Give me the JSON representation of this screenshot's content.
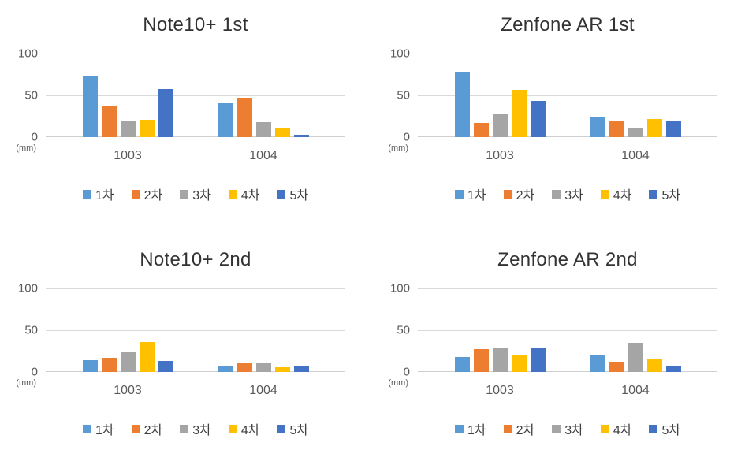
{
  "figure": {
    "background": "#ffffff",
    "layout": "2x2-grid-of-bar-charts"
  },
  "palette": {
    "series1": "#5B9BD5",
    "series2": "#ED7D31",
    "series3": "#A5A5A5",
    "series4": "#FFC000",
    "series5": "#4472C4",
    "gridline": "#d9d9d9",
    "tick_text": "#595959",
    "title_text": "#333333"
  },
  "chart_data": [
    {
      "type": "bar",
      "title": "Note10+ 1st",
      "unit_label": "(mm)",
      "categories": [
        "1003",
        "1004"
      ],
      "yticks": [
        "100",
        "50",
        "0"
      ],
      "ylim": [
        0,
        100
      ],
      "grid": true,
      "legend_position": "bottom",
      "series": [
        {
          "name": "1차",
          "color": "#5B9BD5",
          "values": [
            73,
            41
          ]
        },
        {
          "name": "2차",
          "color": "#ED7D31",
          "values": [
            37,
            47
          ]
        },
        {
          "name": "3차",
          "color": "#A5A5A5",
          "values": [
            20,
            18
          ]
        },
        {
          "name": "4차",
          "color": "#FFC000",
          "values": [
            21,
            11
          ]
        },
        {
          "name": "5차",
          "color": "#4472C4",
          "values": [
            58,
            3
          ]
        }
      ]
    },
    {
      "type": "bar",
      "title": "Zenfone AR 1st",
      "unit_label": "(mm)",
      "categories": [
        "1003",
        "1004"
      ],
      "yticks": [
        "100",
        "50",
        "0"
      ],
      "ylim": [
        0,
        100
      ],
      "grid": true,
      "legend_position": "bottom",
      "series": [
        {
          "name": "1차",
          "color": "#5B9BD5",
          "values": [
            77,
            25
          ]
        },
        {
          "name": "2차",
          "color": "#ED7D31",
          "values": [
            17,
            19
          ]
        },
        {
          "name": "3차",
          "color": "#A5A5A5",
          "values": [
            27,
            11
          ]
        },
        {
          "name": "4차",
          "color": "#FFC000",
          "values": [
            57,
            22
          ]
        },
        {
          "name": "5차",
          "color": "#4472C4",
          "values": [
            43,
            19
          ]
        }
      ]
    },
    {
      "type": "bar",
      "title": "Note10+ 2nd",
      "unit_label": "(mm)",
      "categories": [
        "1003",
        "1004"
      ],
      "yticks": [
        "100",
        "50",
        "0"
      ],
      "ylim": [
        0,
        100
      ],
      "grid": true,
      "legend_position": "bottom",
      "series": [
        {
          "name": "1차",
          "color": "#5B9BD5",
          "values": [
            14,
            7
          ]
        },
        {
          "name": "2차",
          "color": "#ED7D31",
          "values": [
            17,
            10
          ]
        },
        {
          "name": "3차",
          "color": "#A5A5A5",
          "values": [
            24,
            10
          ]
        },
        {
          "name": "4차",
          "color": "#FFC000",
          "values": [
            36,
            6
          ]
        },
        {
          "name": "5차",
          "color": "#4472C4",
          "values": [
            13,
            8
          ]
        }
      ]
    },
    {
      "type": "bar",
      "title": "Zenfone AR 2nd",
      "unit_label": "(mm)",
      "categories": [
        "1003",
        "1004"
      ],
      "yticks": [
        "100",
        "50",
        "0"
      ],
      "ylim": [
        0,
        100
      ],
      "grid": true,
      "legend_position": "bottom",
      "series": [
        {
          "name": "1차",
          "color": "#5B9BD5",
          "values": [
            18,
            20
          ]
        },
        {
          "name": "2차",
          "color": "#ED7D31",
          "values": [
            27,
            11
          ]
        },
        {
          "name": "3차",
          "color": "#A5A5A5",
          "values": [
            28,
            35
          ]
        },
        {
          "name": "4차",
          "color": "#FFC000",
          "values": [
            21,
            15
          ]
        },
        {
          "name": "5차",
          "color": "#4472C4",
          "values": [
            29,
            8
          ]
        }
      ]
    }
  ]
}
